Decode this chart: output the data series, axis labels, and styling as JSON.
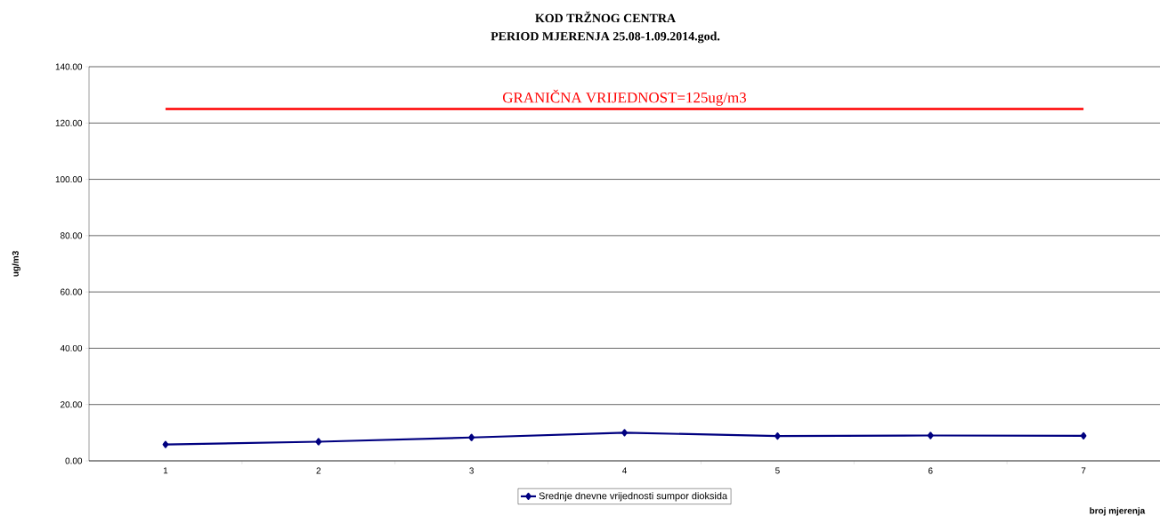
{
  "chart_data": {
    "type": "line",
    "title": "KOD TRŽNOG CENTRA",
    "subtitle": "PERIOD MJERENJA 25.08-1.09.2014.god.",
    "xlabel": "broj mjerenja",
    "ylabel": "ug/m3",
    "categories": [
      "1",
      "2",
      "3",
      "4",
      "5",
      "6",
      "7"
    ],
    "series": [
      {
        "name": "Srednje dnevne vrijednosti sumpor dioksida",
        "color": "#000080",
        "values": [
          5.8,
          6.8,
          8.3,
          10.0,
          8.8,
          9.0,
          8.9
        ]
      }
    ],
    "ref_lines": [
      {
        "axis": "y",
        "value": 125,
        "label": "GRANIČNA VRIJEDNOST=125ug/m3",
        "color": "#ff0000"
      }
    ],
    "ylim": [
      0,
      140
    ],
    "yticks": [
      {
        "value": 0,
        "label": "0.00"
      },
      {
        "value": 20,
        "label": "20.00"
      },
      {
        "value": 40,
        "label": "40.00"
      },
      {
        "value": 60,
        "label": "60.00"
      },
      {
        "value": 80,
        "label": "80.00"
      },
      {
        "value": 100,
        "label": "100.00"
      },
      {
        "value": 120,
        "label": "120.00"
      },
      {
        "value": 140,
        "label": "140.00"
      }
    ],
    "grid": "y",
    "legend": "bottom",
    "marker": "diamond",
    "line_style": "solid"
  }
}
